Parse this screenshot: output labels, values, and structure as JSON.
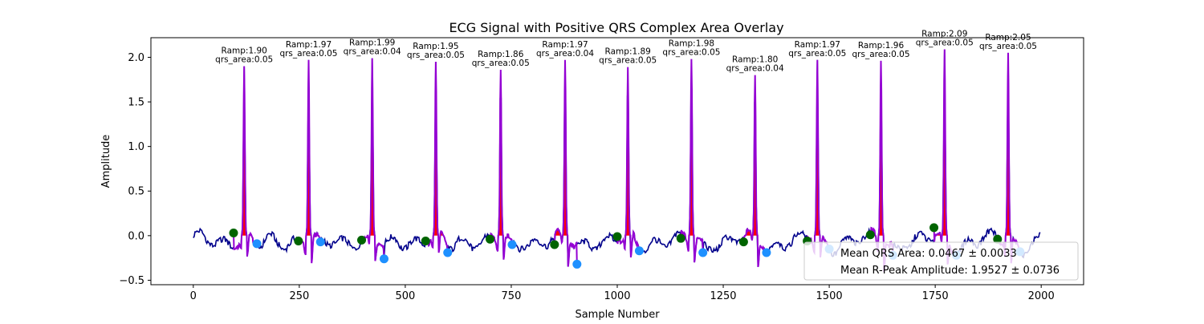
{
  "chart_data": {
    "type": "line",
    "title": "ECG Signal with Positive QRS Complex Area Overlay",
    "xlabel": "Sample Number",
    "ylabel": "Amplitude",
    "xlim": [
      -100,
      2100
    ],
    "ylim": [
      -0.55,
      2.22
    ],
    "xticks": [
      0,
      250,
      500,
      750,
      1000,
      1250,
      1500,
      1750,
      2000
    ],
    "xtick_labels": [
      "0",
      "250",
      "500",
      "750",
      "1000",
      "1250",
      "1500",
      "1750",
      "2000"
    ],
    "yticks": [
      -0.5,
      0.0,
      0.5,
      1.0,
      1.5,
      2.0
    ],
    "ytick_labels": [
      "−0.5",
      "0.0",
      "0.5",
      "1.0",
      "1.5",
      "2.0"
    ],
    "grid": false,
    "legend_position": "bottom-right",
    "legend": [
      "Mean QRS Area: 0.0467 ± 0.0033",
      "Mean R-Peak Amplitude: 1.9527 ± 0.0736"
    ],
    "colors": {
      "signal": "#00008b",
      "qrs_segment": "#9400d3",
      "qrs_area": "#ff0000",
      "onset_marker": "#006400",
      "offset_marker": "#1e90ff"
    },
    "beats": [
      {
        "r_peak_x": 120,
        "r_amp": 1.9,
        "qrs_area": 0.05,
        "onset_x": 95,
        "onset_y": 0.03,
        "offset_x": 150,
        "offset_y": -0.09,
        "label_amp": "Ramp:1.90",
        "label_area": "qrs_area:0.05"
      },
      {
        "r_peak_x": 272,
        "r_amp": 1.97,
        "qrs_area": 0.05,
        "onset_x": 248,
        "onset_y": -0.06,
        "offset_x": 300,
        "offset_y": -0.07,
        "label_amp": "Ramp:1.97",
        "label_area": "qrs_area:0.05"
      },
      {
        "r_peak_x": 422,
        "r_amp": 1.99,
        "qrs_area": 0.04,
        "onset_x": 397,
        "onset_y": -0.05,
        "offset_x": 450,
        "offset_y": -0.26,
        "label_amp": "Ramp:1.99",
        "label_area": "qrs_area:0.04"
      },
      {
        "r_peak_x": 572,
        "r_amp": 1.95,
        "qrs_area": 0.05,
        "onset_x": 548,
        "onset_y": -0.06,
        "offset_x": 600,
        "offset_y": -0.19,
        "label_amp": "Ramp:1.95",
        "label_area": "qrs_area:0.05"
      },
      {
        "r_peak_x": 725,
        "r_amp": 1.86,
        "qrs_area": 0.05,
        "onset_x": 700,
        "onset_y": -0.04,
        "offset_x": 752,
        "offset_y": -0.1,
        "label_amp": "Ramp:1.86",
        "label_area": "qrs_area:0.05"
      },
      {
        "r_peak_x": 877,
        "r_amp": 1.97,
        "qrs_area": 0.04,
        "onset_x": 852,
        "onset_y": -0.1,
        "offset_x": 905,
        "offset_y": -0.32,
        "label_amp": "Ramp:1.97",
        "label_area": "qrs_area:0.04"
      },
      {
        "r_peak_x": 1025,
        "r_amp": 1.89,
        "qrs_area": 0.05,
        "onset_x": 1000,
        "onset_y": -0.01,
        "offset_x": 1052,
        "offset_y": -0.17,
        "label_amp": "Ramp:1.89",
        "label_area": "qrs_area:0.05"
      },
      {
        "r_peak_x": 1175,
        "r_amp": 1.98,
        "qrs_area": 0.05,
        "onset_x": 1150,
        "onset_y": -0.03,
        "offset_x": 1202,
        "offset_y": -0.19,
        "label_amp": "Ramp:1.98",
        "label_area": "qrs_area:0.05"
      },
      {
        "r_peak_x": 1325,
        "r_amp": 1.8,
        "qrs_area": 0.04,
        "onset_x": 1298,
        "onset_y": -0.07,
        "offset_x": 1352,
        "offset_y": -0.19,
        "label_amp": "Ramp:1.80",
        "label_area": "qrs_area:0.04"
      },
      {
        "r_peak_x": 1472,
        "r_amp": 1.97,
        "qrs_area": 0.05,
        "onset_x": 1448,
        "onset_y": -0.06,
        "offset_x": 1500,
        "offset_y": -0.15,
        "label_amp": "Ramp:1.97",
        "label_area": "qrs_area:0.05"
      },
      {
        "r_peak_x": 1622,
        "r_amp": 1.96,
        "qrs_area": 0.05,
        "onset_x": 1597,
        "onset_y": 0.01,
        "offset_x": 1650,
        "offset_y": -0.22,
        "label_amp": "Ramp:1.96",
        "label_area": "qrs_area:0.05"
      },
      {
        "r_peak_x": 1772,
        "r_amp": 2.09,
        "qrs_area": 0.05,
        "onset_x": 1747,
        "onset_y": 0.09,
        "offset_x": 1800,
        "offset_y": -0.22,
        "label_amp": "Ramp:2.09",
        "label_area": "qrs_area:0.05"
      },
      {
        "r_peak_x": 1922,
        "r_amp": 2.05,
        "qrs_area": 0.05,
        "onset_x": 1897,
        "onset_y": -0.04,
        "offset_x": 1950,
        "offset_y": -0.18,
        "label_amp": "Ramp:2.05",
        "label_area": "qrs_area:0.05"
      }
    ]
  }
}
